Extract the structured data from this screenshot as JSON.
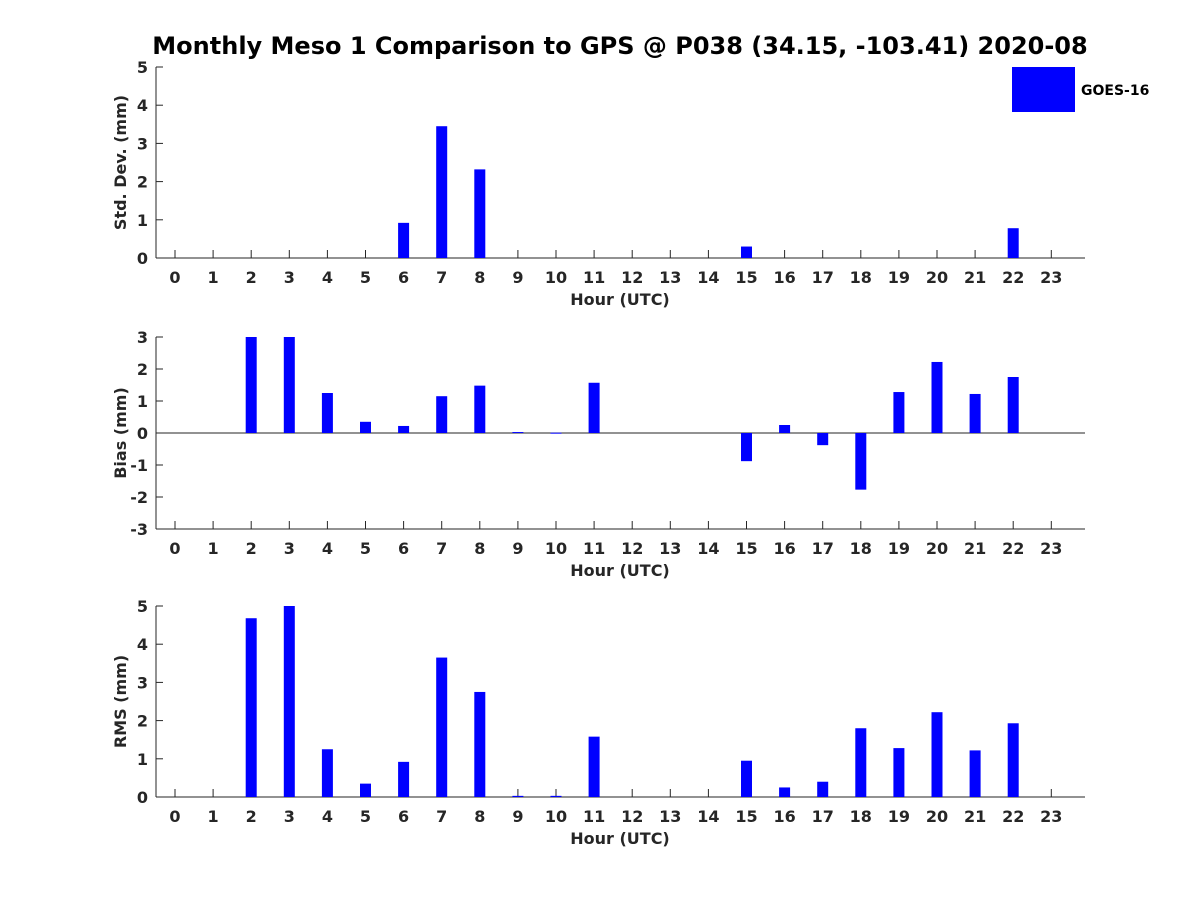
{
  "chart_data": {
    "type": "bar",
    "title": "Monthly Meso 1 Comparison to GPS @ P038 (34.15, -103.41) 2020-08",
    "legend": {
      "label": "GOES-16",
      "color": "#0000ff",
      "position": "top-right"
    },
    "categories": [
      "0",
      "1",
      "2",
      "3",
      "4",
      "5",
      "6",
      "7",
      "8",
      "9",
      "10",
      "11",
      "12",
      "13",
      "14",
      "15",
      "16",
      "17",
      "18",
      "19",
      "20",
      "21",
      "22",
      "23"
    ],
    "panels": [
      {
        "name": "std-dev",
        "ylabel": "Std. Dev. (mm)",
        "xlabel": "Hour (UTC)",
        "ylim": [
          0,
          5
        ],
        "yticks": [
          0,
          1,
          2,
          3,
          4,
          5
        ],
        "series": [
          {
            "name": "GOES-16",
            "values": [
              0,
              0,
              0,
              0,
              0,
              0,
              0.92,
              3.45,
              2.32,
              0,
              0,
              0,
              0,
              0,
              0,
              0.3,
              0,
              0,
              0,
              0,
              0,
              0,
              0.78,
              0
            ]
          }
        ]
      },
      {
        "name": "bias",
        "ylabel": "Bias (mm)",
        "xlabel": "Hour (UTC)",
        "ylim": [
          -3,
          3
        ],
        "yticks": [
          -3,
          -2,
          -1,
          0,
          1,
          2,
          3
        ],
        "zero_line": true,
        "series": [
          {
            "name": "GOES-16",
            "values": [
              0,
              0,
              3.0,
              3.0,
              1.25,
              0.35,
              0.22,
              1.15,
              1.48,
              0.03,
              0.01,
              1.57,
              0,
              0,
              0,
              -0.88,
              0.25,
              -0.38,
              -1.77,
              1.28,
              2.22,
              1.22,
              1.75,
              0
            ]
          }
        ]
      },
      {
        "name": "rms",
        "ylabel": "RMS (mm)",
        "xlabel": "Hour (UTC)",
        "ylim": [
          0,
          5
        ],
        "yticks": [
          0,
          1,
          2,
          3,
          4,
          5
        ],
        "series": [
          {
            "name": "GOES-16",
            "values": [
              0,
              0,
              4.68,
              5.0,
              1.25,
              0.35,
              0.92,
              3.65,
              2.75,
              0.03,
              0.03,
              1.58,
              0,
              0,
              0,
              0.95,
              0.25,
              0.4,
              1.8,
              1.28,
              2.22,
              1.22,
              1.93,
              0
            ]
          }
        ]
      }
    ]
  }
}
